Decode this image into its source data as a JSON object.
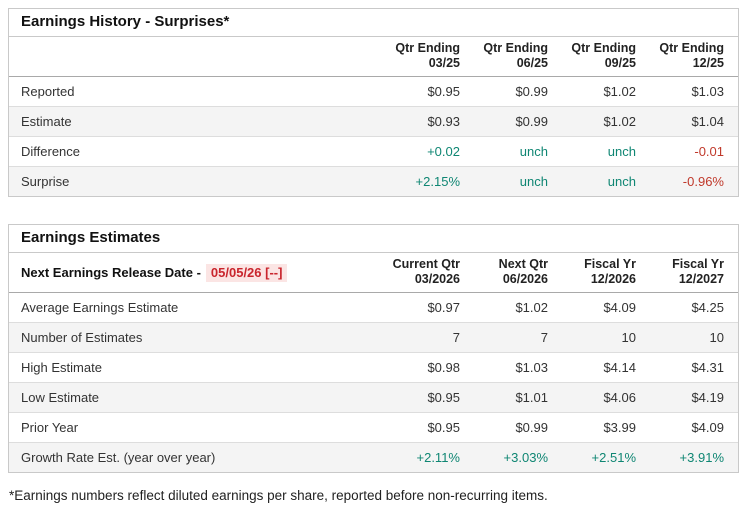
{
  "colors": {
    "green": "#0f8673",
    "red": "#c0392b",
    "date_red": "#c9252d",
    "date_bg": "#fbe5e4",
    "border_outer": "#c9c9c9",
    "border_row": "#dddddd",
    "border_header": "#a9a9a9",
    "row_alt": "#f4f4f4"
  },
  "history": {
    "title": "Earnings History - Surprises*",
    "col_headers": [
      {
        "l1": "Qtr Ending",
        "l2": "03/25"
      },
      {
        "l1": "Qtr Ending",
        "l2": "06/25"
      },
      {
        "l1": "Qtr Ending",
        "l2": "09/25"
      },
      {
        "l1": "Qtr Ending",
        "l2": "12/25"
      }
    ],
    "rows": [
      {
        "label": "Reported",
        "cells": [
          {
            "t": "$0.95",
            "cls": "num"
          },
          {
            "t": "$0.99",
            "cls": "num"
          },
          {
            "t": "$1.02",
            "cls": "num"
          },
          {
            "t": "$1.03",
            "cls": "num"
          }
        ]
      },
      {
        "label": "Estimate",
        "cells": [
          {
            "t": "$0.93",
            "cls": "num"
          },
          {
            "t": "$0.99",
            "cls": "num"
          },
          {
            "t": "$1.02",
            "cls": "num"
          },
          {
            "t": "$1.04",
            "cls": "num"
          }
        ]
      },
      {
        "label": "Difference",
        "cells": [
          {
            "t": "+0.02",
            "cls": "num green"
          },
          {
            "t": "unch",
            "cls": "num green"
          },
          {
            "t": "unch",
            "cls": "num green"
          },
          {
            "t": "-0.01",
            "cls": "num red"
          }
        ]
      },
      {
        "label": "Surprise",
        "cells": [
          {
            "t": "+2.15%",
            "cls": "num green"
          },
          {
            "t": "unch",
            "cls": "num green"
          },
          {
            "t": "unch",
            "cls": "num green"
          },
          {
            "t": "-0.96%",
            "cls": "num red"
          }
        ]
      }
    ]
  },
  "estimates": {
    "title": "Earnings Estimates",
    "release_label": "Next Earnings Release Date -",
    "release_date": "05/05/26 [--]",
    "col_headers": [
      {
        "l1": "Current Qtr",
        "l2": "03/2026"
      },
      {
        "l1": "Next Qtr",
        "l2": "06/2026"
      },
      {
        "l1": "Fiscal Yr",
        "l2": "12/2026"
      },
      {
        "l1": "Fiscal Yr",
        "l2": "12/2027"
      }
    ],
    "rows": [
      {
        "label": "Average Earnings Estimate",
        "cells": [
          {
            "t": "$0.97",
            "cls": "num"
          },
          {
            "t": "$1.02",
            "cls": "num"
          },
          {
            "t": "$4.09",
            "cls": "num"
          },
          {
            "t": "$4.25",
            "cls": "num"
          }
        ]
      },
      {
        "label": "Number of Estimates",
        "cells": [
          {
            "t": "7",
            "cls": "num"
          },
          {
            "t": "7",
            "cls": "num"
          },
          {
            "t": "10",
            "cls": "num"
          },
          {
            "t": "10",
            "cls": "num"
          }
        ]
      },
      {
        "label": "High Estimate",
        "cells": [
          {
            "t": "$0.98",
            "cls": "num"
          },
          {
            "t": "$1.03",
            "cls": "num"
          },
          {
            "t": "$4.14",
            "cls": "num"
          },
          {
            "t": "$4.31",
            "cls": "num"
          }
        ]
      },
      {
        "label": "Low Estimate",
        "cells": [
          {
            "t": "$0.95",
            "cls": "num"
          },
          {
            "t": "$1.01",
            "cls": "num"
          },
          {
            "t": "$4.06",
            "cls": "num"
          },
          {
            "t": "$4.19",
            "cls": "num"
          }
        ]
      },
      {
        "label": "Prior Year",
        "cells": [
          {
            "t": "$0.95",
            "cls": "num"
          },
          {
            "t": "$0.99",
            "cls": "num"
          },
          {
            "t": "$3.99",
            "cls": "num"
          },
          {
            "t": "$4.09",
            "cls": "num"
          }
        ]
      },
      {
        "label": "Growth Rate Est. (year over year)",
        "cells": [
          {
            "t": "+2.11%",
            "cls": "num green"
          },
          {
            "t": "+3.03%",
            "cls": "num green"
          },
          {
            "t": "+2.51%",
            "cls": "num green"
          },
          {
            "t": "+3.91%",
            "cls": "num green"
          }
        ]
      }
    ]
  },
  "footnote": "*Earnings numbers reflect diluted earnings per share, reported before non-recurring items."
}
